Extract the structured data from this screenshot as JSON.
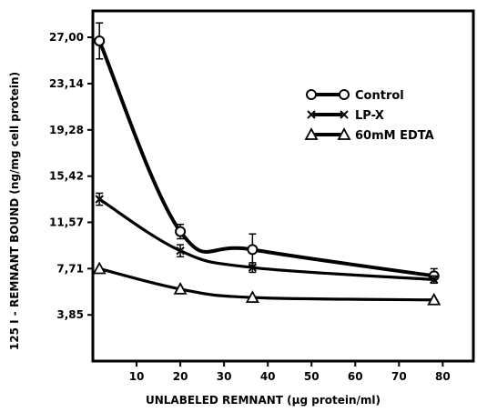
{
  "chart_data": {
    "type": "line",
    "title": "",
    "xlabel": "UNLABELED  REMNANT  (µg  protein/ml)",
    "ylabel": "125  I - REMNANT  BOUND  (ng/mg cell protein)",
    "xlim": [
      0,
      87
    ],
    "ylim": [
      0,
      29.2
    ],
    "x_ticks": [
      10,
      20,
      30,
      40,
      50,
      60,
      70,
      80
    ],
    "x_tick_labels": [
      "10",
      "20",
      "30",
      "40",
      "50",
      "60",
      "70",
      "80"
    ],
    "y_ticks": [
      3.85,
      7.71,
      11.57,
      15.42,
      19.28,
      23.14,
      27.0
    ],
    "y_tick_labels": [
      "3,85",
      "7,71",
      "11,57",
      "15,42",
      "19,28",
      "23,14",
      "27,00"
    ],
    "grid": false,
    "legend_position": "top-right",
    "series": [
      {
        "name": "Control",
        "marker": "circle",
        "legend_marker_text": "o—o",
        "x": [
          1.5,
          20,
          36.5,
          78
        ],
        "y": [
          26.7,
          10.8,
          9.3,
          7.1
        ],
        "err": [
          1.5,
          0.6,
          1.3,
          0.6
        ]
      },
      {
        "name": "LP-X",
        "marker": "x",
        "legend_marker_text": "x—x",
        "x": [
          1.5,
          20,
          36.5,
          78
        ],
        "y": [
          13.5,
          9.2,
          7.8,
          6.8
        ],
        "err": [
          0.5,
          0.5,
          0.4,
          0.3
        ]
      },
      {
        "name": "60mM EDTA",
        "marker": "triangle",
        "legend_marker_text": "Δ—Δ",
        "x": [
          1.5,
          20,
          36.5,
          78
        ],
        "y": [
          7.7,
          6.0,
          5.3,
          5.1
        ],
        "err": [
          0,
          0,
          0,
          0
        ]
      }
    ],
    "style": {
      "line_color": "#000000",
      "background": "#ffffff"
    }
  }
}
